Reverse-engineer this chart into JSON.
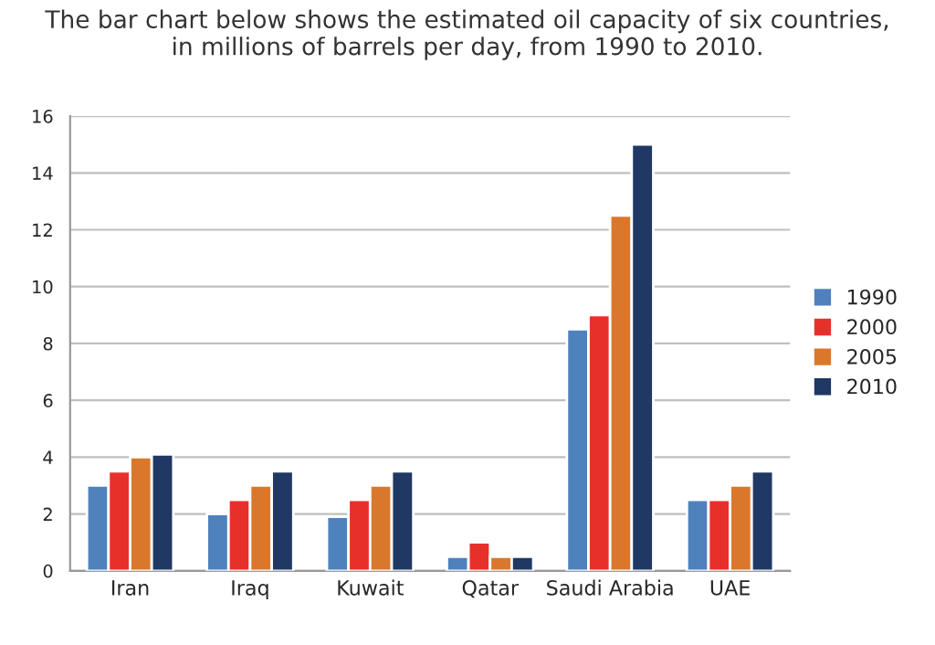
{
  "chart_data": {
    "type": "bar",
    "title": "The bar chart below shows the estimated oil capacity of six countries,\nin millions of barrels per day, from 1990 to 2010.",
    "categories": [
      "Iran",
      "Iraq",
      "Kuwait",
      "Qatar",
      "Saudi Arabia",
      "UAE"
    ],
    "series": [
      {
        "name": "1990",
        "color": "#4f81bd",
        "values": [
          3,
          2,
          1.9,
          0.5,
          8.5,
          2.5
        ]
      },
      {
        "name": "2000",
        "color": "#e8302a",
        "values": [
          3.5,
          2.5,
          2.5,
          1,
          9,
          2.5
        ]
      },
      {
        "name": "2005",
        "color": "#d9782d",
        "values": [
          4,
          3,
          3,
          0.5,
          12.5,
          3
        ]
      },
      {
        "name": "2010",
        "color": "#1f3864",
        "values": [
          4.1,
          3.5,
          3.5,
          0.5,
          15,
          3.5
        ]
      }
    ],
    "ylim": [
      0,
      16
    ],
    "yticks": [
      0,
      2,
      4,
      6,
      8,
      10,
      12,
      14,
      16
    ],
    "grid": "y",
    "legend": "right"
  }
}
